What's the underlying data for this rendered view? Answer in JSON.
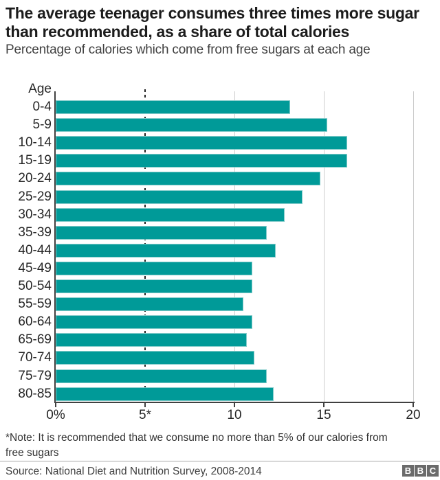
{
  "header": {
    "title_lines": [
      "The average teenager consumes three times more sugar",
      "than recommended, as a share of total calories"
    ],
    "subtitle": "Percentage of calories which come from free sugars at each age"
  },
  "chart_data": {
    "type": "bar",
    "orientation": "horizontal",
    "y_axis_title": "Age",
    "categories": [
      "0-4",
      "5-9",
      "10-14",
      "15-19",
      "20-24",
      "25-29",
      "30-34",
      "35-39",
      "40-44",
      "45-49",
      "50-54",
      "55-59",
      "60-64",
      "65-69",
      "70-74",
      "75-79",
      "80-85"
    ],
    "values": [
      13.1,
      15.2,
      16.3,
      16.3,
      14.8,
      13.8,
      12.8,
      11.8,
      12.3,
      11.0,
      11.0,
      10.5,
      11.0,
      10.7,
      11.1,
      11.8,
      12.2
    ],
    "xlim": [
      0,
      20
    ],
    "x_ticks": [
      0,
      5,
      10,
      15,
      20
    ],
    "x_tick_labels": [
      "0%",
      "5*",
      "10",
      "15",
      "20"
    ],
    "gridline_values": [
      10,
      15,
      20
    ],
    "reference_line": {
      "value": 5,
      "style": "dashed",
      "meaning": "recommended maximum"
    },
    "bar_color": "#009a98",
    "grid": "vertical-light-gray",
    "legend": "none"
  },
  "note_lines": [
    "*Note: It is recommended that we consume no more than 5% of our calories from",
    "free sugars"
  ],
  "footer": {
    "source": "Source: National Diet and Nutrition Survey, 2008-2014",
    "logo_letters": [
      "B",
      "B",
      "C"
    ]
  },
  "colors": {
    "bar": "#009a98",
    "bar_border": "#84cbca",
    "gridline": "#cccccc",
    "axis": "#404040",
    "reference_line": "#222222",
    "title_text": "#1c1c1c",
    "subtitle_text": "#404040",
    "logo_background": "#6b6b6b"
  }
}
